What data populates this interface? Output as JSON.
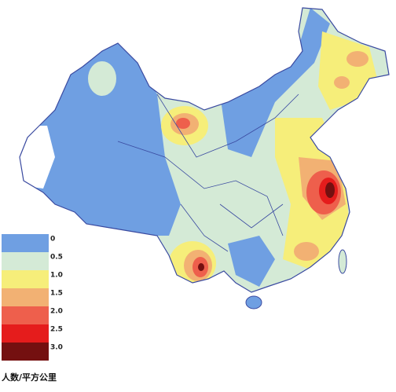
{
  "legend": {
    "items": [
      {
        "label": "0",
        "color": "#6f9fe2"
      },
      {
        "label": "0.5",
        "color": "#d4ead6"
      },
      {
        "label": "1.0",
        "color": "#f6ee7a"
      },
      {
        "label": "1.5",
        "color": "#f2b173"
      },
      {
        "label": "2.0",
        "color": "#ee5f4c"
      },
      {
        "label": "2.5",
        "color": "#e51c1c"
      },
      {
        "label": "3.0",
        "color": "#741010"
      }
    ],
    "unit": "人数/平方公里"
  }
}
